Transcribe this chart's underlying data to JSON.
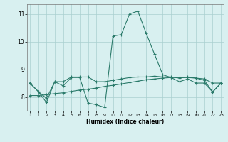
{
  "xlabel": "Humidex (Indice chaleur)",
  "x_values": [
    0,
    1,
    2,
    3,
    4,
    5,
    6,
    7,
    8,
    9,
    10,
    11,
    12,
    13,
    14,
    15,
    16,
    17,
    18,
    19,
    20,
    21,
    22,
    23
  ],
  "line1": [
    8.5,
    8.2,
    7.8,
    8.55,
    8.4,
    8.7,
    8.7,
    7.78,
    7.72,
    7.62,
    10.2,
    10.25,
    11.0,
    11.1,
    10.3,
    9.55,
    8.8,
    8.7,
    8.55,
    8.65,
    8.5,
    8.5,
    8.18,
    8.5
  ],
  "line2": [
    8.5,
    8.2,
    7.95,
    8.55,
    8.55,
    8.72,
    8.72,
    8.72,
    8.55,
    8.55,
    8.6,
    8.65,
    8.7,
    8.72,
    8.72,
    8.75,
    8.72,
    8.72,
    8.68,
    8.72,
    8.68,
    8.6,
    8.18,
    8.5
  ],
  "line3": [
    8.05,
    8.05,
    8.08,
    8.12,
    8.15,
    8.2,
    8.25,
    8.28,
    8.32,
    8.38,
    8.42,
    8.47,
    8.52,
    8.57,
    8.62,
    8.65,
    8.68,
    8.7,
    8.7,
    8.7,
    8.68,
    8.65,
    8.5,
    8.5
  ],
  "ylim": [
    7.5,
    11.35
  ],
  "yticks": [
    8,
    9,
    10,
    11
  ],
  "xticks": [
    0,
    1,
    2,
    3,
    4,
    5,
    6,
    7,
    8,
    9,
    10,
    11,
    12,
    13,
    14,
    15,
    16,
    17,
    18,
    19,
    20,
    21,
    22,
    23
  ],
  "line_color": "#2a7a6a",
  "bg_color": "#d8f0f0",
  "grid_color": "#aacfcf"
}
